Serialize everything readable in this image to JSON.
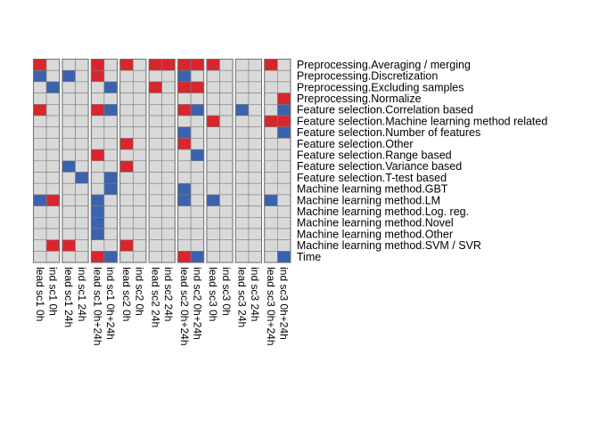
{
  "chart_data": {
    "type": "heatmap",
    "title": "",
    "legend": "none",
    "grid": true,
    "colors": {
      "red": "#d7262d",
      "blue": "#3b62ad",
      "empty": "#d9d9d9",
      "border": "#7f7f7f"
    },
    "value_codes": {
      "0": "empty",
      "1": "red",
      "2": "blue"
    },
    "groups": [
      [
        0,
        1
      ],
      [
        2,
        3
      ],
      [
        4,
        5
      ],
      [
        6,
        7
      ],
      [
        8,
        9
      ],
      [
        10,
        11
      ],
      [
        12,
        13
      ],
      [
        14,
        15
      ],
      [
        16,
        17
      ]
    ],
    "columns": [
      "lead sc1 0h",
      "ind sc1 0h",
      "lead sc1 24h",
      "ind sc1 24h",
      "lead sc1 0h+24h",
      "ind sc1 0h+24h",
      "lead sc2 0h",
      "ind sc2 0h",
      "lead sc2 24h",
      "ind sc2 24h",
      "lead sc2 0h+24h",
      "ind sc2 0h+24h",
      "lead sc3 0h",
      "ind sc3 0h",
      "lead sc3 24h",
      "ind sc3 24h",
      "lead sc3 0h+24h",
      "ind sc3 0h+24h"
    ],
    "rows": [
      "Preprocessing.Averaging / merging",
      "Preprocessing.Discretization",
      "Preprocessing.Excluding samples",
      "Preprocessing.Normalize",
      "Feature selection.Correlation based",
      "Feature selection.Machine learning method related",
      "Feature selection.Number of features",
      "Feature selection.Other",
      "Feature selection.Range based",
      "Feature selection.Variance based",
      "Feature selection.T-test based",
      "Machine learning method.GBT",
      "Machine learning method.LM",
      "Machine learning method.Log. reg.",
      "Machine learning method.Novel",
      "Machine learning method.Other",
      "Machine learning method.SVM / SVR",
      "Time"
    ],
    "values": [
      [
        1,
        0,
        0,
        0,
        1,
        0,
        1,
        0,
        1,
        1,
        1,
        1,
        1,
        0,
        0,
        0,
        1,
        0
      ],
      [
        2,
        0,
        2,
        0,
        1,
        0,
        0,
        0,
        0,
        0,
        2,
        0,
        0,
        0,
        0,
        0,
        0,
        0
      ],
      [
        0,
        2,
        0,
        0,
        0,
        2,
        0,
        0,
        1,
        0,
        1,
        1,
        0,
        0,
        0,
        0,
        0,
        0
      ],
      [
        0,
        0,
        0,
        0,
        0,
        0,
        0,
        0,
        0,
        0,
        0,
        0,
        0,
        0,
        0,
        0,
        0,
        1
      ],
      [
        1,
        0,
        0,
        0,
        1,
        2,
        0,
        0,
        0,
        0,
        1,
        2,
        0,
        0,
        2,
        0,
        0,
        2
      ],
      [
        0,
        0,
        0,
        0,
        0,
        0,
        0,
        0,
        0,
        0,
        0,
        0,
        1,
        0,
        0,
        0,
        1,
        1
      ],
      [
        0,
        0,
        0,
        0,
        0,
        0,
        0,
        0,
        0,
        0,
        2,
        0,
        0,
        0,
        0,
        0,
        0,
        2
      ],
      [
        0,
        0,
        0,
        0,
        0,
        0,
        1,
        0,
        0,
        0,
        1,
        0,
        0,
        0,
        0,
        0,
        0,
        0
      ],
      [
        0,
        0,
        0,
        0,
        1,
        0,
        0,
        0,
        0,
        0,
        0,
        2,
        0,
        0,
        0,
        0,
        0,
        0
      ],
      [
        0,
        0,
        2,
        0,
        0,
        0,
        1,
        0,
        0,
        0,
        0,
        0,
        0,
        0,
        0,
        0,
        0,
        0
      ],
      [
        0,
        0,
        0,
        2,
        0,
        2,
        0,
        0,
        0,
        0,
        0,
        0,
        0,
        0,
        0,
        0,
        0,
        0
      ],
      [
        0,
        0,
        0,
        0,
        0,
        2,
        0,
        0,
        0,
        0,
        2,
        0,
        0,
        0,
        0,
        0,
        0,
        0
      ],
      [
        2,
        1,
        0,
        0,
        2,
        0,
        0,
        0,
        0,
        0,
        2,
        0,
        2,
        0,
        0,
        0,
        2,
        0
      ],
      [
        0,
        0,
        0,
        0,
        2,
        0,
        0,
        0,
        0,
        0,
        0,
        0,
        0,
        0,
        0,
        0,
        0,
        0
      ],
      [
        0,
        0,
        0,
        0,
        2,
        0,
        0,
        0,
        0,
        0,
        0,
        0,
        0,
        0,
        0,
        0,
        0,
        0
      ],
      [
        0,
        0,
        0,
        0,
        2,
        0,
        0,
        0,
        0,
        0,
        0,
        0,
        0,
        0,
        0,
        0,
        0,
        0
      ],
      [
        0,
        1,
        1,
        0,
        0,
        0,
        1,
        0,
        0,
        0,
        0,
        0,
        0,
        0,
        0,
        0,
        0,
        0
      ],
      [
        0,
        0,
        0,
        0,
        1,
        2,
        0,
        0,
        0,
        0,
        1,
        2,
        0,
        0,
        0,
        0,
        0,
        2
      ]
    ]
  }
}
